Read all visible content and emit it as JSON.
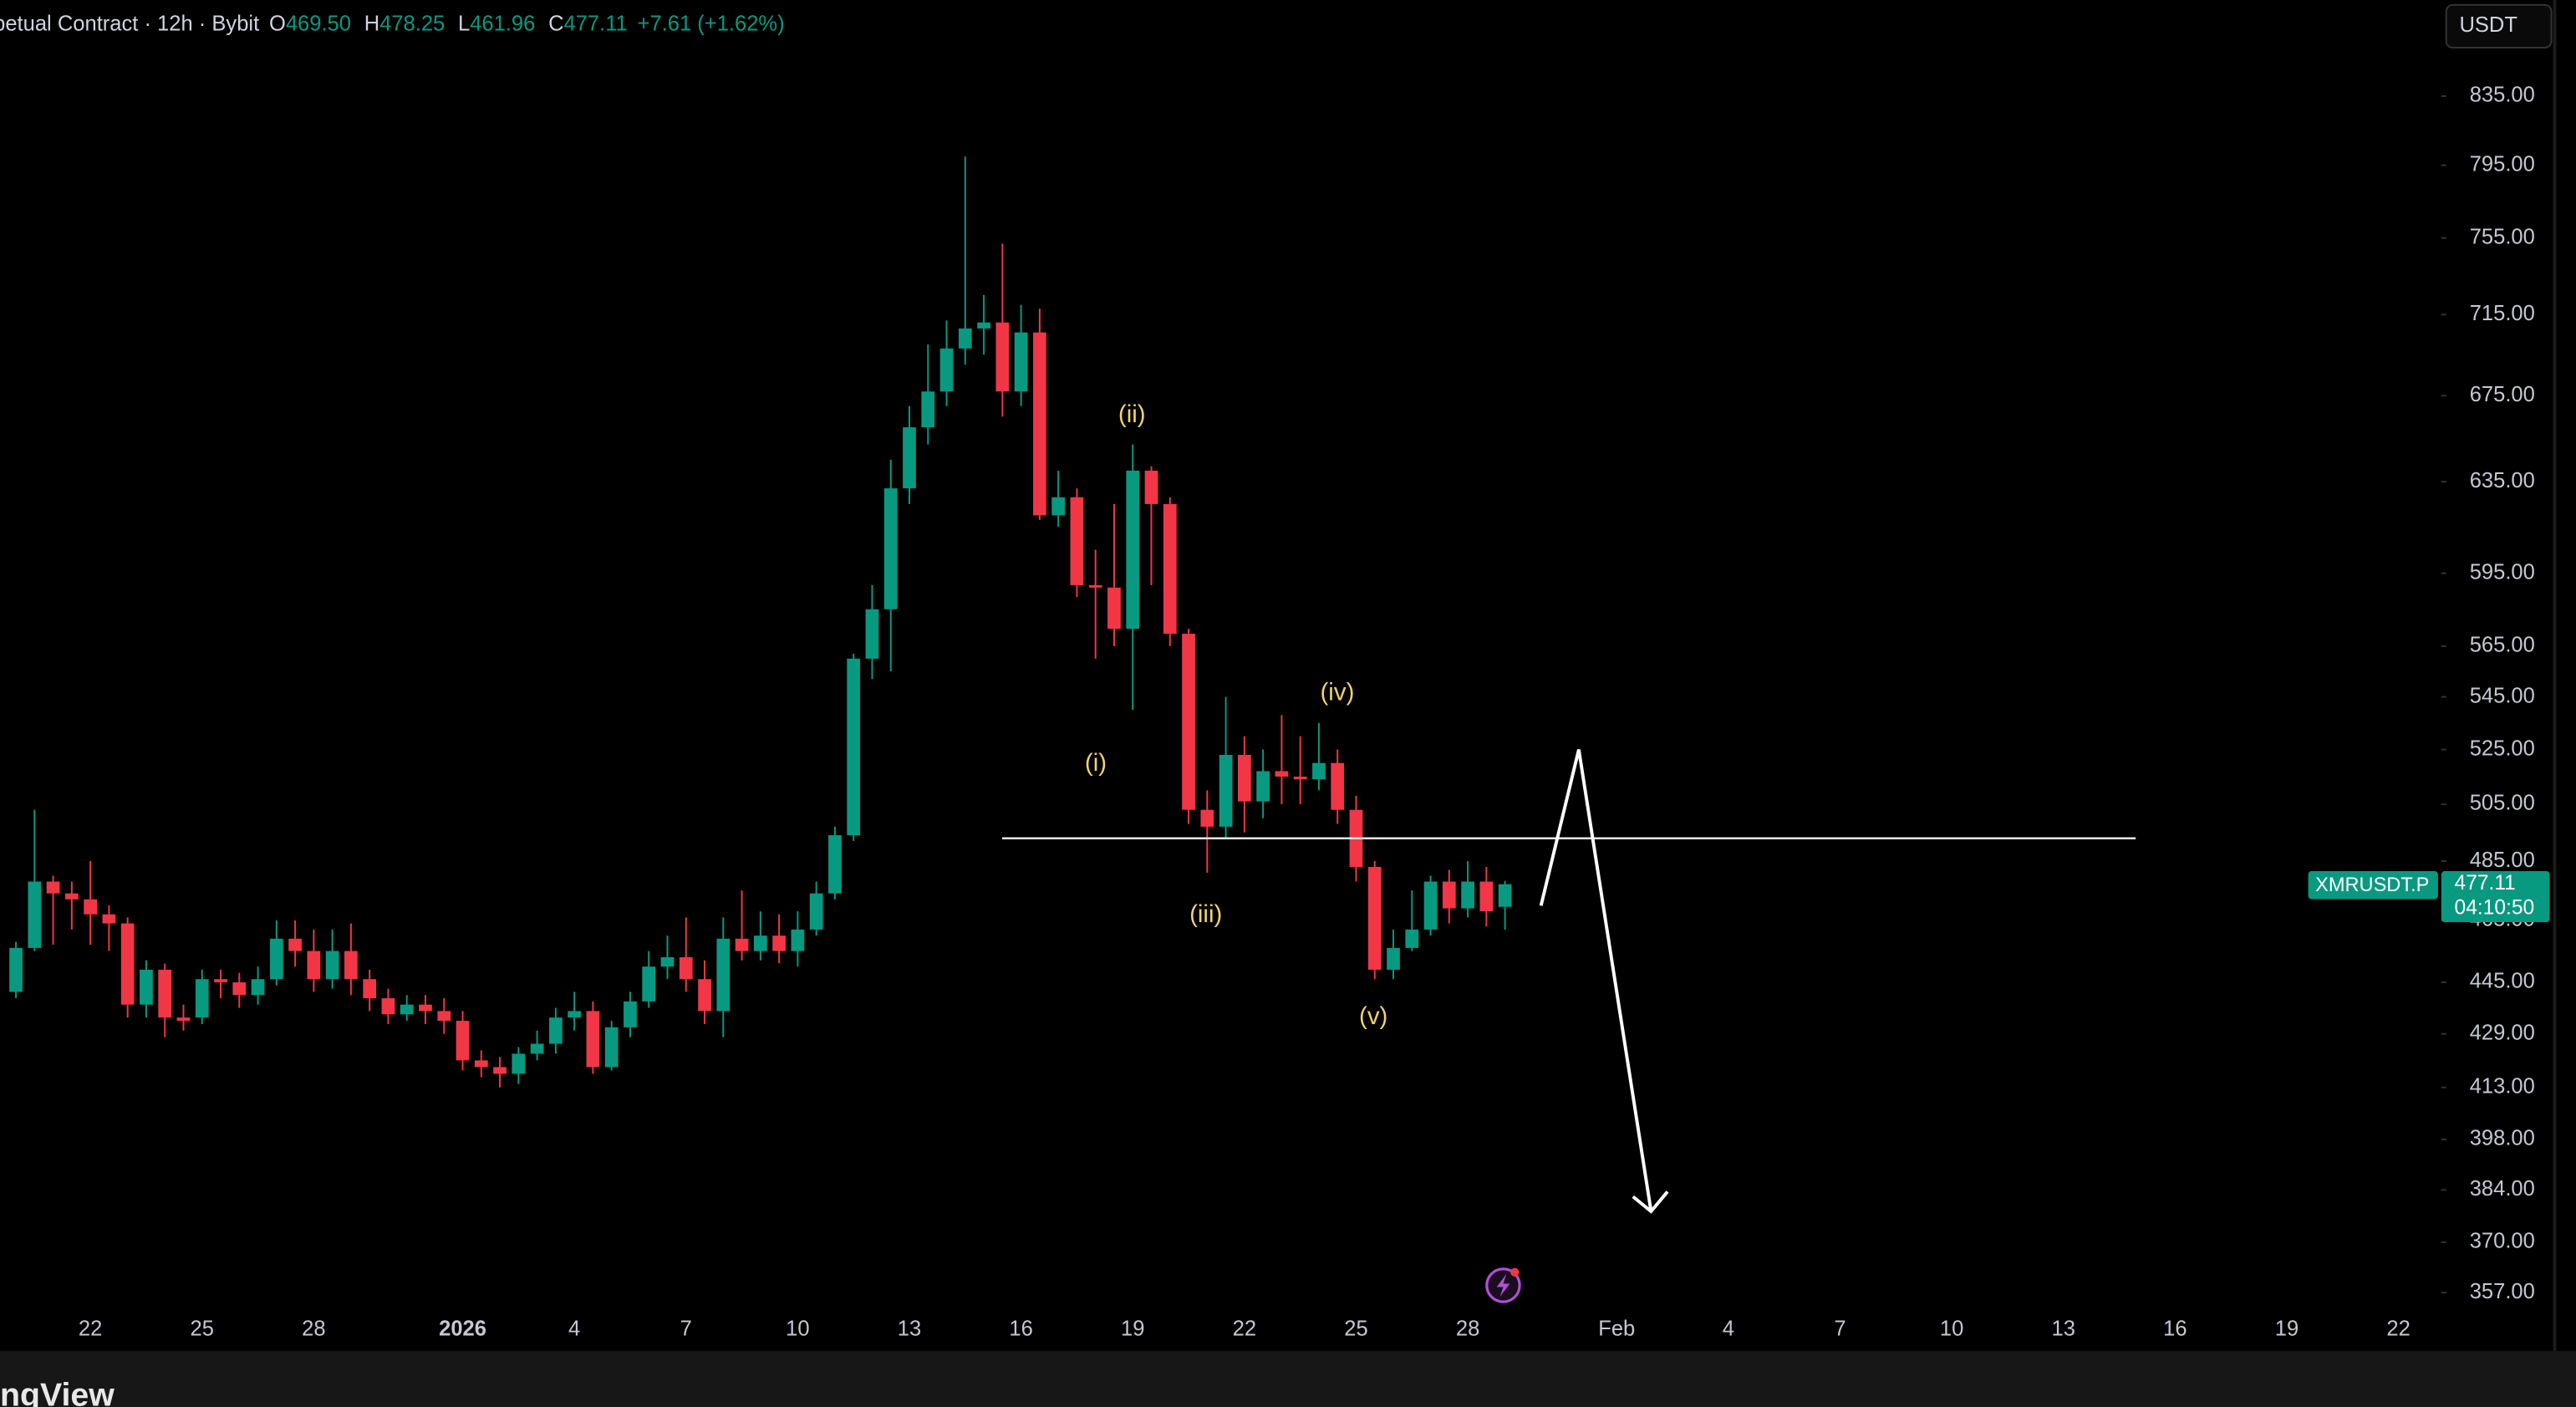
{
  "header": {
    "symbol": "petual Contract · 12h · Bybit",
    "o_label": "O",
    "open": "469.50",
    "h_label": "H",
    "high": "478.25",
    "l_label": "L",
    "low": "461.96",
    "c_label": "C",
    "close": "477.11",
    "change": "+7.61 (+1.62%)"
  },
  "currency": "USDT",
  "price_tag": {
    "symbol": "XMRUSDT.P",
    "price": "477.11",
    "countdown": "04:10:50"
  },
  "waves": [
    "(i)",
    "(ii)",
    "(iii)",
    "(iv)",
    "(v)"
  ],
  "brand": "ngView",
  "chart_data": {
    "type": "candlestick",
    "log_scale": true,
    "grid": false,
    "up_color": "#089981",
    "down_color": "#f23645",
    "ylim": [
      352.6,
      894
    ],
    "yticks": [
      {
        "value": 835,
        "label": "835.00"
      },
      {
        "value": 795,
        "label": "795.00"
      },
      {
        "value": 755,
        "label": "755.00"
      },
      {
        "value": 715,
        "label": "715.00"
      },
      {
        "value": 675,
        "label": "675.00"
      },
      {
        "value": 635,
        "label": "635.00"
      },
      {
        "value": 595,
        "label": "595.00"
      },
      {
        "value": 565,
        "label": "565.00"
      },
      {
        "value": 545,
        "label": "545.00"
      },
      {
        "value": 525,
        "label": "525.00"
      },
      {
        "value": 505,
        "label": "505.00"
      },
      {
        "value": 485,
        "label": "485.00"
      },
      {
        "value": 465,
        "label": "465.00"
      },
      {
        "value": 445,
        "label": "445.00"
      },
      {
        "value": 429,
        "label": "429.00"
      },
      {
        "value": 413,
        "label": "413.00"
      },
      {
        "value": 398,
        "label": "398.00"
      },
      {
        "value": 384,
        "label": "384.00"
      },
      {
        "value": 370,
        "label": "370.00"
      },
      {
        "value": 357,
        "label": "357.00"
      }
    ],
    "categories": [
      null,
      null,
      null,
      null,
      "22",
      null,
      null,
      null,
      null,
      null,
      "25",
      null,
      null,
      null,
      null,
      null,
      "28",
      null,
      null,
      null,
      null,
      null,
      null,
      null,
      "2026",
      null,
      null,
      null,
      null,
      null,
      "4",
      null,
      null,
      null,
      null,
      null,
      "7",
      null,
      null,
      null,
      null,
      null,
      "10",
      null,
      null,
      null,
      null,
      null,
      "13",
      null,
      null,
      null,
      null,
      null,
      "16",
      null,
      null,
      null,
      null,
      null,
      "19",
      null,
      null,
      null,
      null,
      null,
      "22",
      null,
      null,
      null,
      null,
      null,
      "25",
      null,
      null,
      null,
      null,
      null,
      "28",
      null,
      null,
      null,
      null,
      null,
      null,
      null,
      "Feb",
      null,
      null,
      null,
      null,
      null,
      "4",
      null,
      null,
      null,
      null,
      null,
      "7",
      null,
      null,
      null,
      null,
      null,
      "10",
      null,
      null,
      null,
      null,
      null,
      "13",
      null,
      null,
      null,
      null,
      null,
      "16",
      null,
      null,
      null,
      null,
      null,
      "19",
      null,
      null,
      null,
      null,
      null,
      "22"
    ],
    "open": [
      442,
      456,
      478,
      474,
      472,
      467,
      464,
      438,
      449,
      434,
      434,
      446,
      445,
      441,
      446,
      459,
      455,
      446,
      455,
      446,
      440,
      435,
      438,
      436,
      433,
      421,
      419,
      417,
      423,
      426,
      434,
      436,
      419,
      431,
      439,
      450,
      453,
      446,
      436,
      459,
      455,
      460,
      455,
      462,
      474,
      494,
      560,
      580,
      632,
      660,
      677,
      698,
      708,
      711,
      677,
      706,
      620,
      628,
      590,
      589,
      572,
      640,
      625,
      570,
      503,
      497,
      523,
      506,
      517,
      515,
      514,
      520,
      503,
      483,
      449,
      456,
      462,
      478,
      469,
      478,
      469.5,
      null,
      null,
      null,
      null,
      null,
      null,
      null,
      null,
      null,
      null,
      null,
      null,
      null,
      null,
      null,
      null,
      null,
      null,
      null,
      null,
      null,
      null,
      null,
      null,
      null,
      null,
      null,
      null,
      null,
      null,
      null,
      null,
      null,
      null,
      null,
      null,
      null,
      null,
      null,
      null,
      null,
      null,
      null,
      null,
      null,
      null,
      null,
      null
    ],
    "high": [
      458,
      503,
      480,
      478,
      485,
      470,
      466,
      452,
      451,
      438,
      449,
      449,
      448,
      450,
      465,
      465,
      462,
      462,
      464,
      449,
      443,
      441,
      441,
      440,
      436,
      424,
      422,
      425,
      430,
      437,
      442,
      439,
      433,
      442,
      455,
      460,
      466,
      452,
      466,
      475,
      468,
      467,
      468,
      478,
      497,
      562,
      590,
      645,
      670,
      700,
      712,
      800,
      725,
      752,
      720,
      718,
      640,
      632,
      605,
      625,
      652,
      642,
      628,
      572,
      510,
      545,
      530,
      525,
      538,
      530,
      535,
      525,
      508,
      485,
      462,
      475,
      480,
      482,
      485,
      483,
      478.25,
      null,
      null,
      null,
      null,
      null,
      null,
      null,
      null,
      null,
      null,
      null,
      null,
      null,
      null,
      null,
      null,
      null,
      null,
      null,
      null,
      null,
      null,
      null,
      null,
      null,
      null,
      null,
      null,
      null,
      null,
      null,
      null,
      null,
      null,
      null,
      null,
      null,
      null,
      null,
      null,
      null,
      null,
      null,
      null,
      null,
      null,
      null,
      null
    ],
    "low": [
      440,
      455,
      457,
      462,
      457,
      455,
      434,
      434,
      428,
      430,
      432,
      440,
      437,
      438,
      444,
      450,
      442,
      443,
      441,
      436,
      432,
      433,
      432,
      429,
      418,
      416,
      413,
      414,
      421,
      423,
      430,
      417,
      418,
      428,
      437,
      446,
      442,
      432,
      428,
      452,
      452,
      451,
      450,
      460,
      472,
      492,
      552,
      555,
      625,
      652,
      670,
      690,
      695,
      665,
      670,
      618,
      615,
      585,
      560,
      565,
      540,
      590,
      565,
      498,
      481,
      493,
      495,
      500,
      505,
      505,
      510,
      498,
      478,
      446,
      446,
      455,
      460,
      464,
      466,
      463,
      461.96,
      null,
      null,
      null,
      null,
      null,
      null,
      null,
      null,
      null,
      null,
      null,
      null,
      null,
      null,
      null,
      null,
      null,
      null,
      null,
      null,
      null,
      null,
      null,
      null,
      null,
      null,
      null,
      null,
      null,
      null,
      null,
      null,
      null,
      null,
      null,
      null,
      null,
      null,
      null,
      null,
      null,
      null,
      null,
      null,
      null,
      null,
      null,
      null
    ],
    "close": [
      456,
      478,
      474,
      472,
      467,
      464,
      438,
      449,
      434,
      433,
      446,
      445,
      441,
      446,
      459,
      455,
      446,
      455,
      446,
      440,
      435,
      438,
      436,
      433,
      421,
      419,
      417,
      423,
      426,
      434,
      436,
      419,
      431,
      439,
      450,
      453,
      446,
      436,
      459,
      455,
      460,
      455,
      462,
      474,
      494,
      560,
      580,
      632,
      660,
      677,
      698,
      708,
      711,
      677,
      706,
      620,
      628,
      590,
      589,
      572,
      640,
      625,
      570,
      503,
      497,
      523,
      506,
      517,
      515,
      514,
      520,
      503,
      483,
      449,
      456,
      462,
      478,
      469,
      478,
      468,
      477.11,
      null,
      null,
      null,
      null,
      null,
      null,
      null,
      null,
      null,
      null,
      null,
      null,
      null,
      null,
      null,
      null,
      null,
      null,
      null,
      null,
      null,
      null,
      null,
      null,
      null,
      null,
      null,
      null,
      null,
      null,
      null,
      null,
      null,
      null,
      null,
      null,
      null,
      null,
      null,
      null,
      null,
      null,
      null,
      null,
      null,
      null,
      null,
      null
    ]
  }
}
